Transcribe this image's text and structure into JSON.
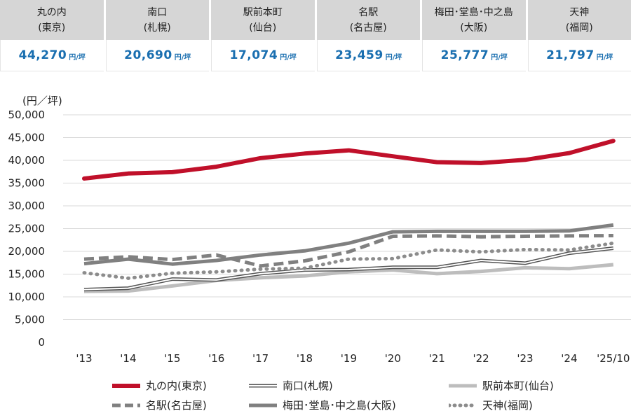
{
  "cards": [
    {
      "name": "丸の内",
      "city": "(東京)",
      "value": "44,270",
      "unit": "円/坪"
    },
    {
      "name": "南口",
      "city": "(札幌)",
      "value": "20,690",
      "unit": "円/坪"
    },
    {
      "name": "駅前本町",
      "city": "(仙台)",
      "value": "17,074",
      "unit": "円/坪"
    },
    {
      "name": "名駅",
      "city": "(名古屋)",
      "value": "23,459",
      "unit": "円/坪"
    },
    {
      "name": "梅田･堂島･中之島",
      "city": "(大阪)",
      "value": "25,777",
      "unit": "円/坪"
    },
    {
      "name": "天神",
      "city": "(福岡)",
      "value": "21,797",
      "unit": "円/坪"
    }
  ],
  "chart_data": {
    "type": "line",
    "ylabel": "(円／坪)",
    "ylim": [
      0,
      50000
    ],
    "yticks": [
      0,
      5000,
      10000,
      15000,
      20000,
      25000,
      30000,
      35000,
      40000,
      45000,
      50000
    ],
    "ytick_labels": [
      "0",
      "5,000",
      "10,000",
      "15,000",
      "20,000",
      "25,000",
      "30,000",
      "35,000",
      "40,000",
      "45,000",
      "50,000"
    ],
    "categories": [
      "'13",
      "'14",
      "'15",
      "'16",
      "'17",
      "'18",
      "'19",
      "'20",
      "'21",
      "'22",
      "'23",
      "'24",
      "'25/10"
    ],
    "grid": "horizontal",
    "legend_position": "bottom",
    "series": [
      {
        "name": "丸の内(東京)",
        "style": "thick",
        "color": "#c0102a",
        "values": [
          36000,
          37100,
          37400,
          38600,
          40500,
          41500,
          42200,
          40900,
          39600,
          39400,
          40100,
          41600,
          44270
        ]
      },
      {
        "name": "南口(札幌)",
        "style": "double",
        "color": "#555555",
        "values": [
          11600,
          11900,
          13900,
          13700,
          15100,
          15900,
          16000,
          16500,
          16500,
          18000,
          17400,
          19600,
          20690
        ]
      },
      {
        "name": "駅前本町(仙台)",
        "style": "light",
        "color": "#bdbdbd",
        "values": [
          11200,
          11300,
          12400,
          13600,
          14200,
          14600,
          15500,
          15900,
          15100,
          15600,
          16400,
          16200,
          17074
        ]
      },
      {
        "name": "名駅(名古屋)",
        "style": "dashed",
        "color": "#808080",
        "values": [
          18300,
          18800,
          18200,
          19200,
          16800,
          17900,
          19900,
          23300,
          23400,
          23200,
          23300,
          23400,
          23459
        ]
      },
      {
        "name": "梅田･堂島･中之島(大阪)",
        "style": "solid",
        "color": "#808080",
        "values": [
          17300,
          18300,
          17200,
          18000,
          19200,
          20100,
          21800,
          24300,
          24400,
          24400,
          24400,
          24500,
          25777
        ]
      },
      {
        "name": "天神(福岡)",
        "style": "dotted",
        "color": "#8c8c8c",
        "values": [
          15300,
          14100,
          15200,
          15500,
          16100,
          16300,
          18300,
          18400,
          20300,
          19900,
          20400,
          20300,
          21797
        ]
      }
    ]
  }
}
